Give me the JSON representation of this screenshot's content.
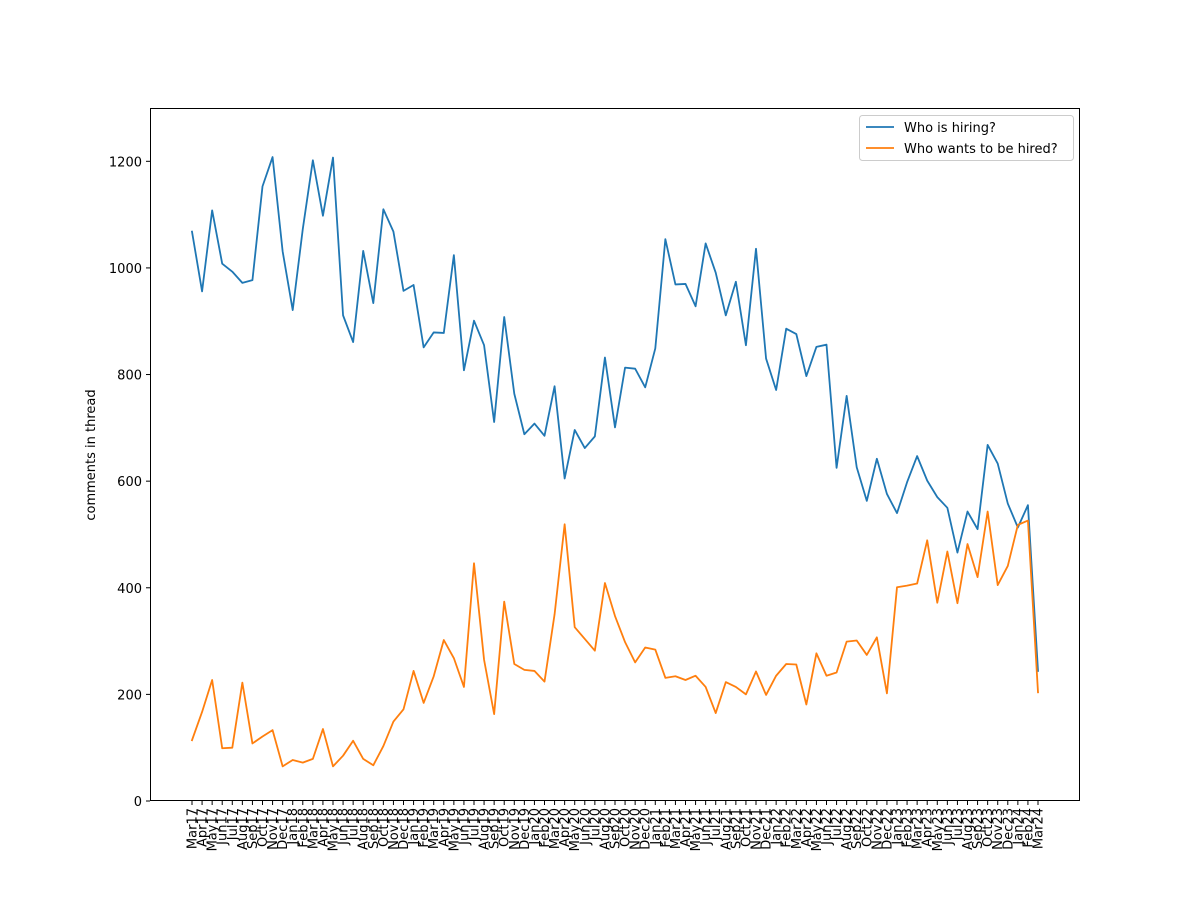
{
  "chart_data": {
    "type": "line",
    "title": "",
    "xlabel": "",
    "ylabel": "comments in thread",
    "ylim": [
      0,
      1300
    ],
    "yticks": [
      0,
      200,
      400,
      600,
      800,
      1000,
      1200
    ],
    "grid": false,
    "legend_position": "top-right",
    "categories": [
      "Mar17",
      "Apr17",
      "May17",
      "Jun17",
      "Jul17",
      "Aug17",
      "Sep17",
      "Oct17",
      "Nov17",
      "Dec17",
      "Jan18",
      "Feb18",
      "Mar18",
      "Apr18",
      "May18",
      "Jun18",
      "Jul18",
      "Aug18",
      "Sep18",
      "Oct18",
      "Nov18",
      "Dec18",
      "Jan19",
      "Feb19",
      "Mar19",
      "Apr19",
      "May19",
      "Jun19",
      "Jul19",
      "Aug19",
      "Sep19",
      "Oct19",
      "Nov19",
      "Dec19",
      "Jan20",
      "Feb20",
      "Mar20",
      "Apr20",
      "May20",
      "Jun20",
      "Jul20",
      "Aug20",
      "Sep20",
      "Oct20",
      "Nov20",
      "Dec20",
      "Jan21",
      "Feb21",
      "Mar21",
      "Apr21",
      "May21",
      "Jun21",
      "Jul21",
      "Aug21",
      "Sep21",
      "Oct21",
      "Nov21",
      "Dec21",
      "Jan22",
      "Feb22",
      "Mar22",
      "Apr22",
      "May22",
      "Jun22",
      "Jul22",
      "Aug22",
      "Sep22",
      "Oct22",
      "Nov22",
      "Dec22",
      "Jan23",
      "Feb23",
      "Mar23",
      "Apr23",
      "May23",
      "Jun23",
      "Jul23",
      "Aug23",
      "Sep23",
      "Oct23",
      "Nov23",
      "Dec23",
      "Jan24",
      "Feb24",
      "Mar24"
    ],
    "series": [
      {
        "name": "Who is hiring?",
        "color": "#1f77b4",
        "values": [
          1068,
          956,
          1108,
          1008,
          993,
          972,
          977,
          1153,
          1208,
          1031,
          921,
          1073,
          1202,
          1098,
          1207,
          911,
          861,
          1032,
          934,
          1110,
          1068,
          957,
          968,
          851,
          879,
          878,
          1024,
          808,
          901,
          855,
          711,
          908,
          764,
          688,
          708,
          685,
          778,
          605,
          696,
          662,
          684,
          832,
          701,
          813,
          811,
          776,
          849,
          1054,
          969,
          970,
          928,
          1046,
          991,
          911,
          974,
          855,
          1036,
          830,
          771,
          886,
          876,
          797,
          852,
          856,
          625,
          760,
          626,
          563,
          642,
          576,
          540,
          598,
          647,
          601,
          570,
          550,
          466,
          543,
          510,
          668,
          633,
          558,
          513,
          555,
          244
        ]
      },
      {
        "name": "Who wants to be hired?",
        "color": "#ff7f0e",
        "values": [
          114,
          167,
          227,
          99,
          100,
          222,
          108,
          121,
          133,
          65,
          77,
          72,
          79,
          135,
          65,
          85,
          113,
          79,
          67,
          103,
          149,
          172,
          244,
          184,
          234,
          302,
          268,
          214,
          446,
          265,
          163,
          374,
          257,
          246,
          244,
          224,
          350,
          519,
          326,
          304,
          282,
          409,
          347,
          298,
          260,
          288,
          284,
          231,
          234,
          227,
          235,
          214,
          165,
          223,
          214,
          200,
          243,
          199,
          235,
          257,
          256,
          181,
          277,
          235,
          241,
          299,
          301,
          274,
          307,
          202,
          401,
          404,
          408,
          489,
          372,
          468,
          371,
          482,
          420,
          543,
          405,
          441,
          518,
          526,
          204
        ]
      }
    ]
  }
}
